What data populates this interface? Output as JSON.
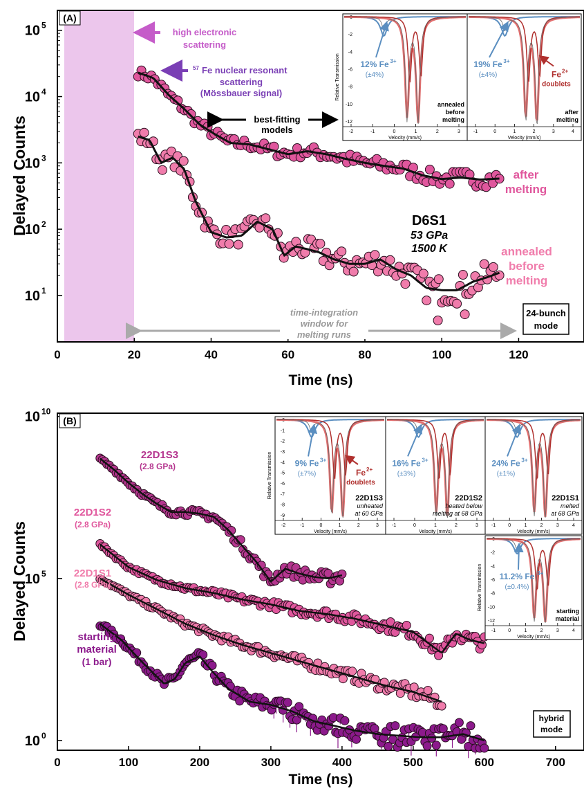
{
  "chart_data": [
    {
      "panel_label": "(A)",
      "type": "scatter",
      "xlabel": "Time (ns)",
      "ylabel": "Delayed Counts",
      "xlim": [
        0,
        137
      ],
      "ylim_log10": [
        0.3,
        5.3
      ],
      "xticks": [
        0,
        20,
        40,
        60,
        80,
        100,
        120
      ],
      "yticks": [
        {
          "base": "10",
          "exp": "1",
          "v": 1
        },
        {
          "base": "10",
          "exp": "2",
          "v": 2
        },
        {
          "base": "10",
          "exp": "3",
          "v": 3
        },
        {
          "base": "10",
          "exp": "4",
          "v": 4
        },
        {
          "base": "10",
          "exp": "5",
          "v": 5
        }
      ],
      "shaded_region": {
        "x": [
          2,
          20
        ],
        "color": "#ecc6ec"
      },
      "annotations": {
        "high_electronic": "high electronic",
        "scattering": "scattering",
        "nuclear_sup": "57",
        "nuclear_line1": "Fe nuclear resonant",
        "nuclear_line2": "scattering",
        "nuclear_line3": "(Mössbauer signal)",
        "best_fit_1": "best-fitting",
        "best_fit_2": "models",
        "window_1": "time-integration",
        "window_2": "window for",
        "window_3": "melting runs",
        "sample": "D6S1",
        "pressure": "53 GPa",
        "temperature": "1500 K",
        "mode_1": "24-bunch",
        "mode_2": "mode"
      },
      "series": [
        {
          "name": "after melting",
          "label_lines": [
            "after",
            "melting"
          ],
          "color": "#e0579d",
          "x": [
            21,
            25,
            29,
            33,
            37,
            41,
            45,
            50,
            55,
            60,
            65,
            70,
            75,
            80,
            85,
            90,
            95,
            100,
            105,
            110,
            115
          ],
          "y": [
            23000,
            19000,
            10500,
            6500,
            3800,
            2700,
            2000,
            1900,
            1600,
            1350,
            1500,
            1350,
            1150,
            1000,
            900,
            820,
            650,
            570,
            600,
            560,
            580
          ]
        },
        {
          "name": "annealed before melting",
          "label_lines": [
            "annealed",
            "before",
            "melting"
          ],
          "color": "#f07cab",
          "x": [
            21,
            24,
            27,
            30,
            33,
            36,
            40,
            44,
            48,
            52,
            56,
            59,
            62,
            65,
            68,
            72,
            76,
            80,
            84,
            88,
            92,
            96,
            100,
            104,
            108,
            112,
            115
          ],
          "y": [
            2500,
            2200,
            1000,
            1200,
            800,
            260,
            90,
            75,
            80,
            130,
            100,
            40,
            55,
            50,
            45,
            35,
            30,
            30,
            35,
            25,
            20,
            13,
            12,
            12,
            16,
            19,
            22
          ]
        }
      ],
      "insets": [
        {
          "ylabel": "Relative Transmission",
          "xlabel": "Velocity (mm/s)",
          "xticks": [
            "-2",
            "-1",
            "0",
            "1",
            "2",
            "3"
          ],
          "yticks": [
            "0",
            "-2",
            "-4",
            "-6",
            "-8",
            "-10",
            "-12"
          ],
          "fe3_label": "12% Fe",
          "fe3_sup": "3+",
          "fe3_err": "(±4%)",
          "caption_lines": [
            "annealed",
            "before",
            "melting"
          ]
        },
        {
          "xlabel": "Velocity (mm/s)",
          "xticks": [
            "-1",
            "0",
            "1",
            "2",
            "3",
            "4"
          ],
          "fe3_label": "19% Fe",
          "fe3_sup": "3+",
          "fe3_err": "(±4%)",
          "fe2_label": "Fe",
          "fe2_sup": "2+",
          "fe2_sub": "doublets",
          "caption_lines": [
            "after",
            "melting"
          ]
        }
      ]
    },
    {
      "panel_label": "(B)",
      "type": "scatter",
      "xlabel": "Time (ns)",
      "ylabel": "Delayed Counts",
      "xlim": [
        0,
        740
      ],
      "ylim_log10": [
        -0.3,
        10.1
      ],
      "xticks": [
        0,
        100,
        200,
        300,
        400,
        500,
        600,
        700
      ],
      "yticks": [
        {
          "base": "10",
          "exp": "0",
          "v": 0
        },
        {
          "base": "10",
          "exp": "5",
          "v": 5
        },
        {
          "base": "10",
          "exp": "10",
          "v": 10
        }
      ],
      "annotations": {
        "mode_1": "hybrid",
        "mode_2": "mode"
      },
      "series": [
        {
          "name": "22D1S3",
          "sub": "(2.8 GPa)",
          "color": "#b5368f",
          "x": [
            60,
            80,
            100,
            120,
            140,
            160,
            180,
            200,
            220,
            240,
            260,
            280,
            300,
            320,
            340,
            360,
            380,
            400
          ],
          "y_log10": [
            8.7,
            8.35,
            7.95,
            7.6,
            7.3,
            7.05,
            7.05,
            7.0,
            6.9,
            6.5,
            6.0,
            5.5,
            4.9,
            5.3,
            5.15,
            5.05,
            5.0,
            5.1
          ]
        },
        {
          "name": "22D1S2",
          "sub": "(2.8 GPa)",
          "color": "#e0579d",
          "x": [
            60,
            100,
            140,
            180,
            220,
            260,
            300,
            340,
            380,
            420,
            460,
            500,
            540,
            560,
            580,
            600
          ],
          "y_log10": [
            6.05,
            5.35,
            4.95,
            4.7,
            4.55,
            4.35,
            4.2,
            4.0,
            3.9,
            3.75,
            3.55,
            3.35,
            2.7,
            3.3,
            3.1,
            3.0
          ]
        },
        {
          "name": "22D1S1",
          "sub": "(2.8 GPa)",
          "color": "#f07cab",
          "x": [
            60,
            100,
            140,
            180,
            220,
            260,
            300,
            340,
            380,
            420,
            460,
            500,
            540
          ],
          "y_log10": [
            5.0,
            4.5,
            4.05,
            3.6,
            3.25,
            2.95,
            2.7,
            2.45,
            2.2,
            1.95,
            1.7,
            1.5,
            1.2
          ]
        },
        {
          "name": "starting material",
          "name_lines": [
            "starting",
            "material"
          ],
          "sub": "(1 bar)",
          "color": "#8c1a8c",
          "x": [
            60,
            90,
            120,
            150,
            165,
            180,
            200,
            215,
            240,
            270,
            300,
            330,
            360,
            390,
            420,
            450,
            480,
            510,
            540,
            570,
            600
          ],
          "y_log10": [
            3.6,
            3.1,
            2.4,
            1.75,
            1.9,
            2.4,
            2.6,
            2.2,
            1.6,
            1.2,
            1.1,
            0.9,
            0.6,
            0.45,
            0.3,
            0.2,
            0.15,
            0.1,
            0.1,
            0.2,
            0.0
          ]
        }
      ],
      "insets": [
        {
          "ylabel": "Relative Transmission",
          "xlabel": "Velocity (mm/s)",
          "xticks": [
            "-2",
            "-1",
            "0",
            "1",
            "2",
            "3"
          ],
          "yticks": [
            "0",
            "-1",
            "-2",
            "-3",
            "-4",
            "-5",
            "-6",
            "-7",
            "-8",
            "-9"
          ],
          "fe3_label": "9% Fe",
          "fe3_sup": "3+",
          "fe3_err": "(±7%)",
          "fe2_label": "Fe",
          "fe2_sup": "2+",
          "fe2_sub": "doublets",
          "caption_lines": [
            "22D1S3",
            "unheated",
            "at 60 GPa"
          ]
        },
        {
          "xlabel": "Velocity (mm/s)",
          "xticks": [
            "-1",
            "0",
            "1",
            "2",
            "3"
          ],
          "fe3_label": "16% Fe",
          "fe3_sup": "3+",
          "fe3_err": "(±3%)",
          "caption_lines": [
            "22D1S2",
            "heated below",
            "melting at 68 GPa"
          ]
        },
        {
          "xlabel": "Velocity (mm/s)",
          "xticks": [
            "-1",
            "0",
            "1",
            "2",
            "3",
            "4"
          ],
          "fe3_label": "24% Fe",
          "fe3_sup": "3+",
          "fe3_err": "(±1%)",
          "caption_lines": [
            "22D1S1",
            "melted",
            "at 68 GPa"
          ]
        },
        {
          "ylabel": "Relative Transmission",
          "xlabel": "Velocity (mm/s)",
          "xticks": [
            "-1",
            "0",
            "1",
            "2",
            "3",
            "4"
          ],
          "yticks": [
            "0",
            "-2",
            "-4",
            "-6",
            "-8",
            "-10",
            "-12"
          ],
          "fe3_label": "11.2% Fe",
          "fe3_sup": "3+",
          "fe3_err": "(±0.4%)",
          "caption_lines": [
            "starting",
            "material"
          ]
        }
      ]
    }
  ]
}
